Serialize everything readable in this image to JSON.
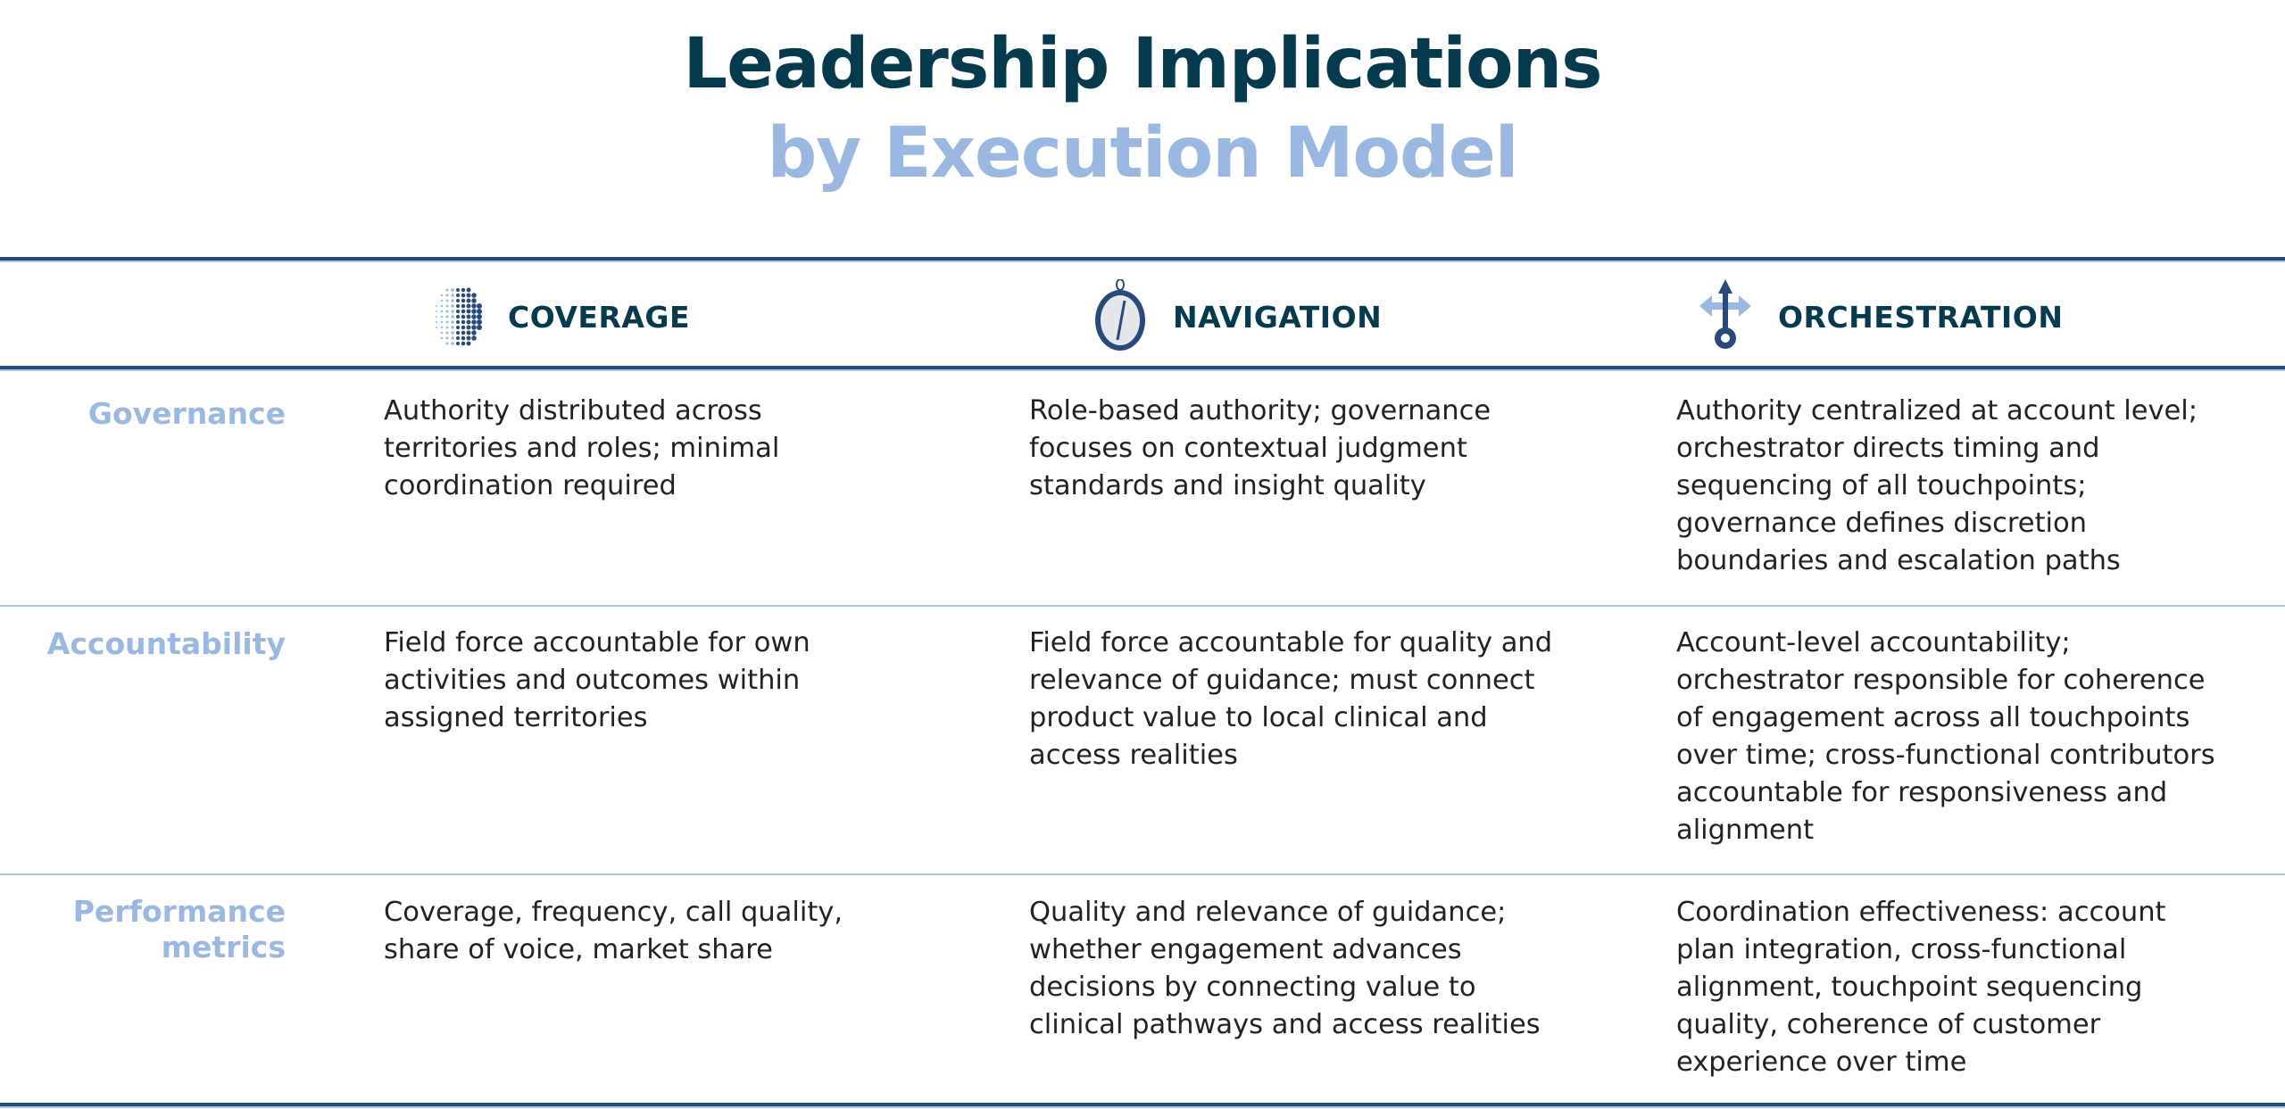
{
  "title": {
    "line1": "Leadership Implications",
    "line2": "by Execution Model"
  },
  "columns": [
    {
      "label": "COVERAGE",
      "icon": "dot-globe-icon"
    },
    {
      "label": "NAVIGATION",
      "icon": "compass-icon"
    },
    {
      "label": "ORCHESTRATION",
      "icon": "arrows-gear-icon"
    }
  ],
  "colors": {
    "dark": "#063a4f",
    "accent": "#9ab8e2",
    "rule": "#284a7a"
  },
  "rows": [
    {
      "label": "Governance",
      "cells": [
        "Authority distributed across territories and roles; minimal coordination required",
        "Role-based authority; governance focuses on contextual judgment standards and insight quality",
        "Authority centralized at account level; orchestrator directs timing and sequencing of all touchpoints; governance defines discretion boundaries and escalation paths"
      ]
    },
    {
      "label": "Accountability",
      "cells": [
        "Field force accountable for own activities and outcomes within assigned territories",
        "Field force accountable for quality and relevance of guidance; must connect product value to local clinical and access realities",
        "Account-level accountability; orchestrator responsible for coherence of engagement across all touchpoints over time; cross-functional contributors accountable for responsiveness and alignment"
      ]
    },
    {
      "label": "Performance metrics",
      "cells": [
        "Coverage, frequency, call quality, share of voice, market share",
        "Quality and relevance of guidance; whether engagement advances decisions by connecting value to clinical pathways and access realities",
        "Coordination effectiveness: account plan integration, cross-functional alignment, touchpoint sequencing quality, coherence of customer experience over time"
      ]
    }
  ]
}
